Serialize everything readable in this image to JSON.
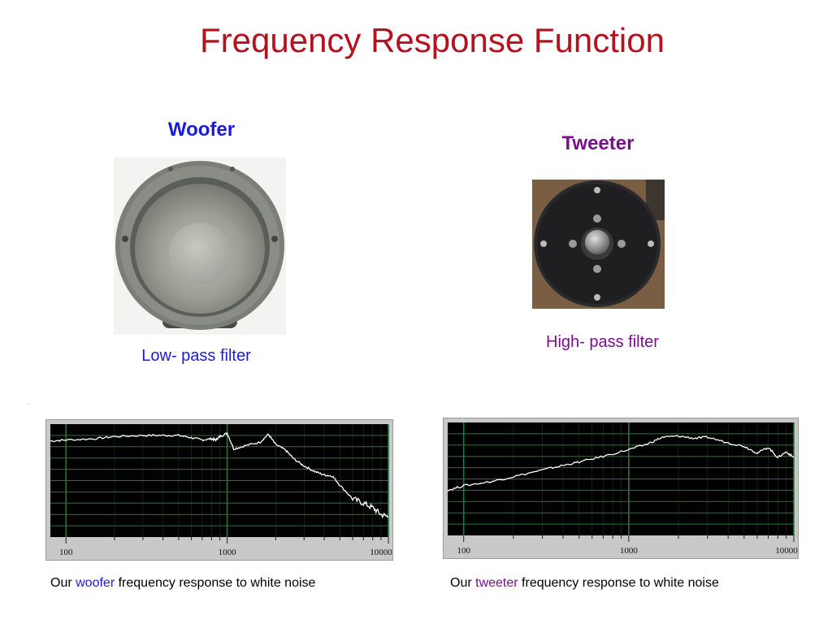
{
  "title": "Frequency Response Function",
  "woofer": {
    "heading": "Woofer",
    "filter_label": "Low- pass filter",
    "caption_prefix": "Our ",
    "caption_highlight": "woofer",
    "caption_suffix": " frequency response to white noise"
  },
  "tweeter": {
    "heading": "Tweeter",
    "filter_label": "High- pass filter",
    "caption_prefix": "Our ",
    "caption_highlight": "tweeter",
    "caption_suffix": " frequency response to white noise"
  },
  "colors": {
    "title": "#b4121e",
    "woofer_accent": "#1a1ae0",
    "tweeter_accent": "#7a0f8c",
    "plot_bg": "#000000",
    "grid": "#1f7a3a",
    "trace": "#ffffff"
  },
  "chart_data": [
    {
      "type": "line",
      "name": "woofer-response",
      "x_scale": "log",
      "xlim": [
        80,
        10000
      ],
      "ylim": [
        0,
        10
      ],
      "grid": true,
      "x_tick_labels": [
        "100",
        "1000",
        "10000"
      ],
      "x_ticks": [
        100,
        1000,
        10000
      ],
      "x": [
        80,
        100,
        150,
        200,
        300,
        400,
        500,
        600,
        700,
        800,
        850,
        900,
        1000,
        1100,
        1300,
        1600,
        1800,
        2000,
        2300,
        2600,
        3000,
        3500,
        4000,
        4500,
        5000,
        6000,
        7000,
        8000,
        9000,
        10000
      ],
      "y": [
        8.5,
        8.6,
        8.7,
        8.9,
        9.0,
        9.0,
        9.0,
        8.8,
        8.6,
        8.7,
        8.6,
        8.9,
        9.2,
        7.8,
        8.1,
        8.4,
        9.1,
        8.2,
        7.7,
        6.9,
        6.3,
        5.8,
        5.5,
        5.4,
        4.6,
        3.4,
        3.0,
        2.6,
        2.0,
        1.8
      ]
    },
    {
      "type": "line",
      "name": "tweeter-response",
      "x_scale": "log",
      "xlim": [
        80,
        10000
      ],
      "ylim": [
        0,
        10
      ],
      "grid": true,
      "x_tick_labels": [
        "100",
        "1000",
        "10000"
      ],
      "x_ticks": [
        100,
        1000,
        10000
      ],
      "x": [
        80,
        100,
        150,
        200,
        300,
        400,
        500,
        700,
        1000,
        1300,
        1600,
        2000,
        2500,
        3000,
        4000,
        5000,
        6000,
        7000,
        8000,
        9000,
        10000
      ],
      "y": [
        4.0,
        4.4,
        4.8,
        5.2,
        5.8,
        6.2,
        6.5,
        7.0,
        7.6,
        8.1,
        8.7,
        8.8,
        8.6,
        8.7,
        8.2,
        7.9,
        7.3,
        7.8,
        6.9,
        7.4,
        6.9
      ]
    }
  ]
}
